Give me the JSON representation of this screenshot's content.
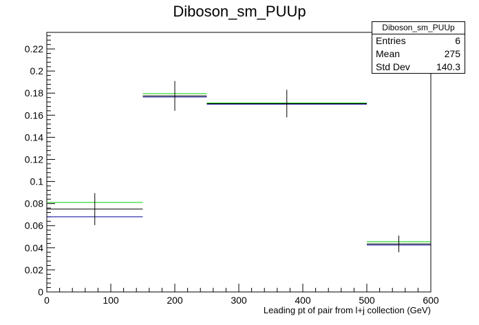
{
  "chart_data": {
    "type": "histogram",
    "title": "Diboson_sm_PUUp",
    "xlabel": "Leading pt of pair from l+j collection (GeV)",
    "ylabel": "",
    "xlim": [
      0,
      600
    ],
    "ylim": [
      0,
      0.235
    ],
    "x_ticks": [
      0,
      100,
      200,
      300,
      400,
      500,
      600
    ],
    "y_ticks": [
      0,
      0.02,
      0.04,
      0.06,
      0.08,
      0.1,
      0.12,
      0.14,
      0.16,
      0.18,
      0.2,
      0.22
    ],
    "bins": [
      {
        "low": 0,
        "high": 150,
        "center": 75,
        "value": 0.075,
        "error": 0.0145
      },
      {
        "low": 150,
        "high": 250,
        "center": 200,
        "value": 0.1775,
        "error": 0.0135
      },
      {
        "low": 250,
        "high": 500,
        "center": 375,
        "value": 0.1705,
        "error": 0.0125
      },
      {
        "low": 500,
        "high": 600,
        "center": 550,
        "value": 0.0435,
        "error": 0.0075
      }
    ],
    "series": [
      {
        "color": "#000000",
        "values": [
          0.075,
          0.1775,
          0.1705,
          0.0435
        ]
      },
      {
        "color": "#00cc00",
        "values": [
          0.081,
          0.1795,
          0.171,
          0.0455
        ]
      },
      {
        "color": "#000099",
        "values": [
          0.068,
          0.1765,
          0.17,
          0.0425
        ]
      }
    ],
    "stats_box": {
      "title": "Diboson_sm_PUUp",
      "entries_label": "Entries",
      "entries": "6",
      "mean_label": "Mean",
      "mean": "275",
      "stddev_label": "Std Dev",
      "stddev": "140.3"
    }
  }
}
